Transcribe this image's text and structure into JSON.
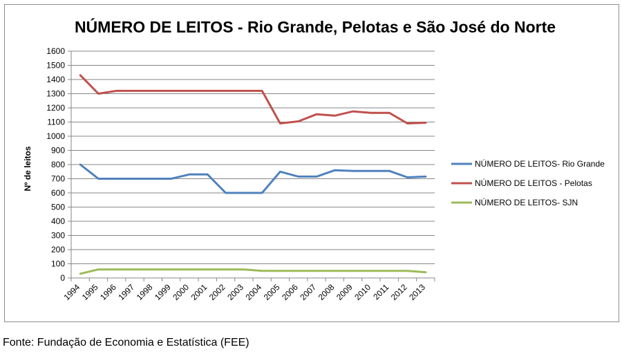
{
  "chart_data": {
    "type": "line",
    "title": "NÚMERO DE LEITOS - Rio Grande, Pelotas e São José do Norte",
    "xlabel": "",
    "ylabel": "Nº de leitos",
    "ylim": [
      0,
      1600
    ],
    "yticks": [
      0,
      100,
      200,
      300,
      400,
      500,
      600,
      700,
      800,
      900,
      1000,
      1100,
      1200,
      1300,
      1400,
      1500,
      1600
    ],
    "grid": true,
    "legend_position": "right",
    "categories": [
      "1994",
      "1995",
      "1996",
      "1997",
      "1998",
      "1999",
      "2000",
      "2001",
      "2002",
      "2003",
      "2004",
      "2005",
      "2006",
      "2007",
      "2008",
      "2009",
      "2010",
      "2011",
      "2012",
      "2013"
    ],
    "series": [
      {
        "name": "NÚMERO DE LEITOS- Rio Grande",
        "color": "#4f81bd",
        "values": [
          800,
          700,
          700,
          700,
          700,
          700,
          730,
          730,
          600,
          600,
          600,
          750,
          715,
          715,
          760,
          755,
          755,
          755,
          710,
          715
        ]
      },
      {
        "name": "NÚMERO DE LEITOS - Pelotas",
        "color": "#c0504d",
        "values": [
          1430,
          1300,
          1320,
          1320,
          1320,
          1320,
          1320,
          1320,
          1320,
          1320,
          1320,
          1090,
          1105,
          1155,
          1145,
          1175,
          1165,
          1165,
          1090,
          1095
        ]
      },
      {
        "name": "NÚMERO DE LEITOS- SJN",
        "color": "#9bbb59",
        "values": [
          30,
          60,
          60,
          60,
          60,
          60,
          60,
          60,
          60,
          60,
          50,
          50,
          50,
          50,
          50,
          50,
          50,
          50,
          50,
          40
        ]
      }
    ]
  },
  "footer": {
    "source": "Fonte: Fundação de Economia e Estatística (FEE)"
  }
}
